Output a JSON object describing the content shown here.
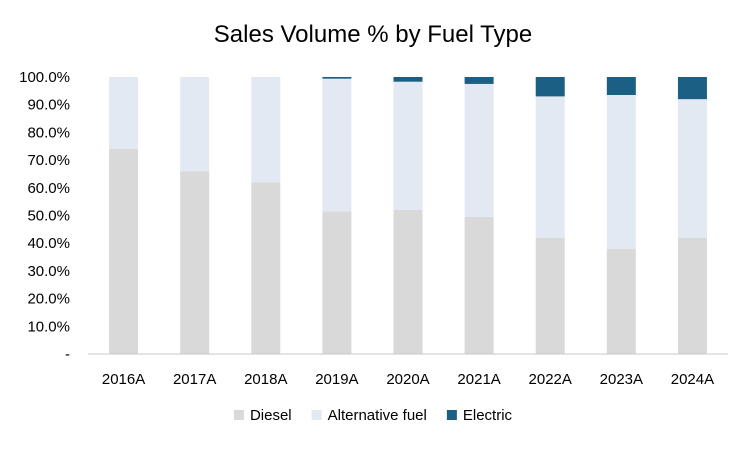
{
  "chart_data": {
    "type": "bar",
    "stacked": true,
    "title": "Sales Volume % by Fuel Type",
    "categories": [
      "2016A",
      "2017A",
      "2018A",
      "2019A",
      "2020A",
      "2021A",
      "2022A",
      "2023A",
      "2024A"
    ],
    "series": [
      {
        "name": "Diesel",
        "color": "#d9d9d9",
        "values": [
          74.0,
          66.0,
          62.0,
          51.5,
          52.0,
          49.5,
          42.0,
          38.0,
          42.0
        ]
      },
      {
        "name": "Alternative fuel",
        "color": "#e2e9f2",
        "values": [
          26.0,
          34.0,
          38.0,
          47.9,
          46.3,
          48.0,
          51.0,
          55.5,
          50.0
        ]
      },
      {
        "name": "Electric",
        "color": "#1b5f84",
        "values": [
          0.0,
          0.0,
          0.0,
          0.6,
          1.7,
          2.5,
          7.0,
          6.5,
          8.0
        ]
      }
    ],
    "y_ticks": [
      "-",
      "10.0%",
      "20.0%",
      "30.0%",
      "40.0%",
      "50.0%",
      "60.0%",
      "70.0%",
      "80.0%",
      "90.0%",
      "100.0%"
    ],
    "ylim": [
      0,
      100
    ],
    "grid": false,
    "legend_position": "bottom"
  }
}
